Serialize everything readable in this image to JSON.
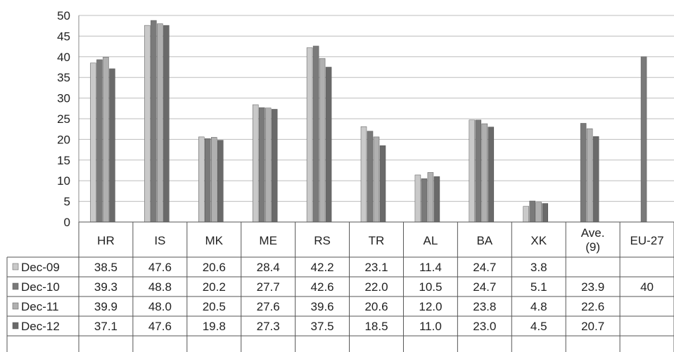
{
  "chart_data": {
    "type": "bar",
    "categories": [
      "HR",
      "IS",
      "MK",
      "ME",
      "RS",
      "TR",
      "AL",
      "BA",
      "XK",
      "Ave. (9)",
      "EU-27"
    ],
    "category_lines": [
      [
        "HR"
      ],
      [
        "IS"
      ],
      [
        "MK"
      ],
      [
        "ME"
      ],
      [
        "RS"
      ],
      [
        "TR"
      ],
      [
        "AL"
      ],
      [
        "BA"
      ],
      [
        "XK"
      ],
      [
        "Ave.",
        "(9)"
      ],
      [
        "EU-27"
      ]
    ],
    "ylim": [
      0,
      50
    ],
    "yticks": [
      0,
      5,
      10,
      15,
      20,
      25,
      30,
      35,
      40,
      45,
      50
    ],
    "grid": true,
    "legend": "data-table",
    "series": [
      {
        "name": "Dec-09",
        "color": "#c9c9c9",
        "values": [
          38.5,
          47.6,
          20.6,
          28.4,
          42.2,
          23.1,
          11.4,
          24.7,
          3.8,
          null,
          null
        ],
        "labels": [
          "38.5",
          "47.6",
          "20.6",
          "28.4",
          "42.2",
          "23.1",
          "11.4",
          "24.7",
          "3.8",
          "",
          ""
        ]
      },
      {
        "name": "Dec-10",
        "color": "#7a7a7a",
        "values": [
          39.3,
          48.8,
          20.2,
          27.7,
          42.6,
          22.0,
          10.5,
          24.7,
          5.1,
          23.9,
          40
        ],
        "labels": [
          "39.3",
          "48.8",
          "20.2",
          "27.7",
          "42.6",
          "22.0",
          "10.5",
          "24.7",
          "5.1",
          "23.9",
          "40"
        ]
      },
      {
        "name": "Dec-11",
        "color": "#b0b0b0",
        "values": [
          39.9,
          48.0,
          20.5,
          27.6,
          39.6,
          20.6,
          12.0,
          23.8,
          4.8,
          22.6,
          null
        ],
        "labels": [
          "39.9",
          "48.0",
          "20.5",
          "27.6",
          "39.6",
          "20.6",
          "12.0",
          "23.8",
          "4.8",
          "22.6",
          ""
        ]
      },
      {
        "name": "Dec-12",
        "color": "#6a6a6a",
        "values": [
          37.1,
          47.6,
          19.8,
          27.3,
          37.5,
          18.5,
          11.0,
          23.0,
          4.5,
          20.7,
          null
        ],
        "labels": [
          "37.1",
          "47.6",
          "19.8",
          "27.3",
          "37.5",
          "18.5",
          "11.0",
          "23.0",
          "4.5",
          "20.7",
          ""
        ]
      }
    ]
  }
}
